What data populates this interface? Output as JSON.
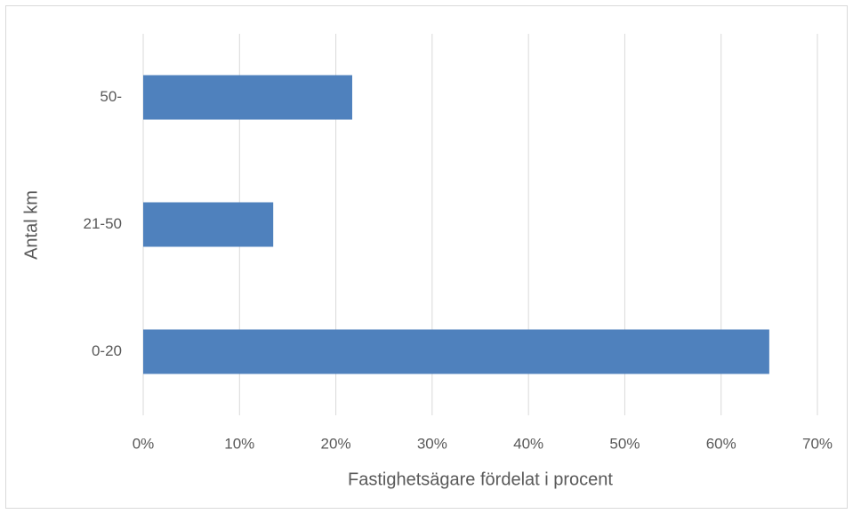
{
  "chart_data": {
    "type": "hbar",
    "x_label": "Fastighetsägare fördelat i procent",
    "y_label": "Antal km",
    "categories": [
      "0-20",
      "21-50",
      "50-"
    ],
    "values": [
      65,
      13.5,
      21.7
    ],
    "color": "#4f81bd",
    "xlim": [
      0,
      70
    ],
    "xticks": [
      {
        "value": 0,
        "label": "0%"
      },
      {
        "value": 10,
        "label": "10%"
      },
      {
        "value": 20,
        "label": "20%"
      },
      {
        "value": 30,
        "label": "30%"
      },
      {
        "value": 40,
        "label": "40%"
      },
      {
        "value": 50,
        "label": "50%"
      },
      {
        "value": 60,
        "label": "60%"
      },
      {
        "value": 70,
        "label": "70%"
      }
    ],
    "grid": true
  }
}
